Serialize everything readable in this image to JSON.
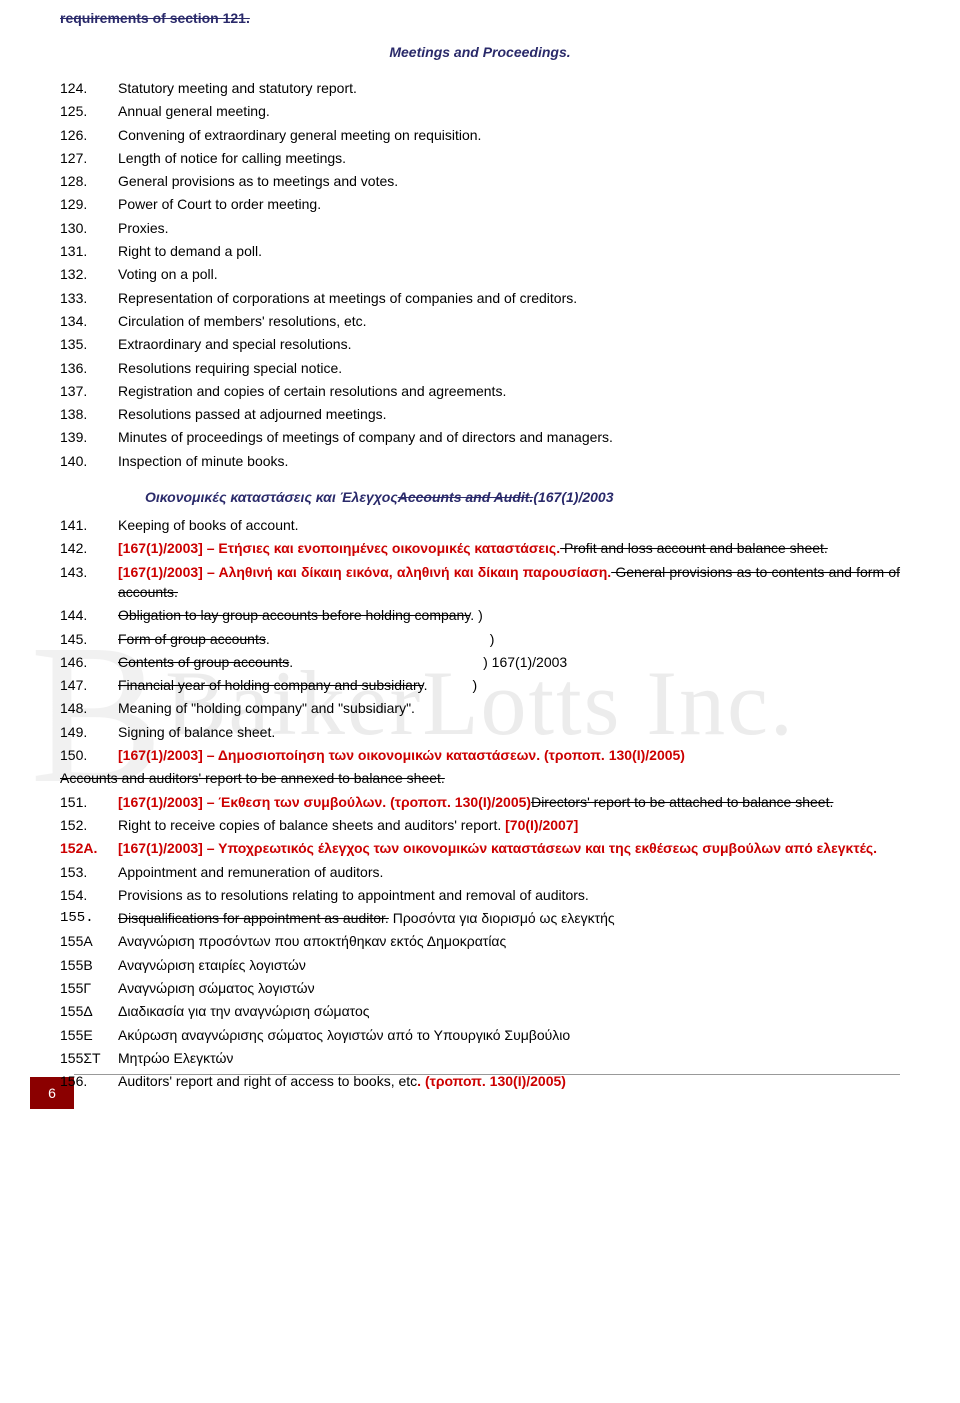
{
  "top_struck": "requirements of section 121.",
  "heading1": "Meetings and Proceedings.",
  "list1": [
    {
      "n": "124.",
      "t": "Statutory meeting and statutory report."
    },
    {
      "n": "125.",
      "t": "Annual general meeting."
    },
    {
      "n": "126.",
      "t": "Convening of extraordinary general meeting on requisition."
    },
    {
      "n": "127.",
      "t": "Length of notice for calling meetings."
    },
    {
      "n": "128.",
      "t": "General provisions as to meetings and votes."
    },
    {
      "n": "129.",
      "t": "Power of Court to order meeting."
    },
    {
      "n": "130.",
      "t": "Proxies."
    },
    {
      "n": "131.",
      "t": "Right to demand a poll."
    },
    {
      "n": "132.",
      "t": "Voting on a poll."
    },
    {
      "n": "133.",
      "t": "Representation of corporations at meetings of companies and   of creditors."
    },
    {
      "n": "134.",
      "t": "Circulation of members' resolutions, etc."
    },
    {
      "n": "135.",
      "t": "Extraordinary and special resolutions."
    },
    {
      "n": "136.",
      "t": "Resolutions requiring special notice."
    },
    {
      "n": "137.",
      "t": "Registration and copies of certain resolutions and  agreements."
    },
    {
      "n": "138.",
      "t": "Resolutions passed at adjourned meetings."
    },
    {
      "n": "139.",
      "t": "Minutes of proceedings of meetings of company and of directors and managers."
    },
    {
      "n": "140.",
      "t": "Inspection of minute books."
    }
  ],
  "heading2_pre": "Οικονομικές καταστάσεις και Έλεγχος",
  "heading2_struck": "Accounts and Audit.",
  "heading2_post": "(167(1)/2003",
  "item141": {
    "n": "141.",
    "t": "Keeping of books of account."
  },
  "item142": {
    "n": "142.",
    "pre": "[167(1)/2003] – Ετήσιες και ενοποιημένες οικονομικές καταστάσεις.",
    "struck": " Profit and loss account and balance sheet."
  },
  "item143": {
    "n": "143.",
    "pre": "[167(1)/2003] – Αληθινή και δίκαιη εικόνα, αληθινή και δίκαιη παρουσίαση.",
    "struck": " General provisions as to contents and form of accounts."
  },
  "item144": {
    "n": "144.",
    "struck": "Obligation to lay group accounts before holding company",
    "post": ". )"
  },
  "item145": {
    "n": "145.",
    "struck": "Form of group accounts",
    "post": ".",
    "tail": ")"
  },
  "item146": {
    "n": "146.",
    "struck": "Contents of group accounts",
    "post": ".",
    "tail": ") 167(1)/2003"
  },
  "item147": {
    "n": "147.",
    "struck": "Financial year of holding company and subsidiary",
    "post": ".",
    "tail": ")"
  },
  "item148": {
    "n": "148.",
    "t": "Meaning of \"holding company\" and \"subsidiary\"."
  },
  "item149": {
    "n": "149.",
    "t": "Signing of balance sheet."
  },
  "item150": {
    "n": "150.",
    "pre": "[167(1)/2003] – Δημοσιοποίηση των οικονομικών καταστάσεων. (τροποπ. 130(I)/2005)"
  },
  "item150a": {
    "struck": "Accounts and auditors' report to be annexed to balance sheet."
  },
  "item151": {
    "n": "151.",
    "pre": "[167(1)/2003] – Έκθεση των συμβούλων. (τροποπ. 130(I)/2005)",
    "struck": "Directors' report to be attached to balance sheet."
  },
  "item152": {
    "n": "152.",
    "t": "Right to receive copies of balance sheets and auditors' report.",
    "red": " [70(I)/2007]"
  },
  "item152A": {
    "n": "152A.",
    "t": "[167(1)/2003] – Υποχρεωτικός έλεγχος των οικονομικών καταστάσεων και της εκθέσεως συμβούλων από ελεγκτές."
  },
  "item153": {
    "n": "153.",
    "t": "Appointment and remuneration of auditors."
  },
  "item154": {
    "n": "154.",
    "t": "Provisions as to resolutions relating to appointment and     removal of auditors."
  },
  "item155": {
    "n": "155.",
    "struck": "Disqualifications for appointment as auditor.",
    "post": " Προσόντα για διορισμό ως ελεγκτής"
  },
  "item155A": {
    "n": "155Α",
    "t": "Αναγνώριση προσόντων που αποκτήθηκαν εκτός Δημοκρατίας"
  },
  "item155B": {
    "n": "155Β",
    "t": "Αναγνώριση εταιρίες λογιστών"
  },
  "item155G": {
    "n": "155Γ",
    "t": "Αναγνώριση σώματος λογιστών"
  },
  "item155D": {
    "n": "155Δ",
    "t": "Διαδικασία για την αναγνώριση σώματος"
  },
  "item155E": {
    "n": "155Ε",
    "t": "Ακύρωση αναγνώρισης σώματος λογιστών από το Υπουργικό Συμβούλιο"
  },
  "item155ST": {
    "n": "155ΣΤ",
    "t": "Μητρώο Ελεγκτών"
  },
  "item156": {
    "n": "156.",
    "t": "Auditors' report and right of access to books, etc",
    "red": ".   (τροποπ. 130(I)/2005)"
  },
  "pagenum": "6",
  "watermark": "BaikerLotts Inc."
}
